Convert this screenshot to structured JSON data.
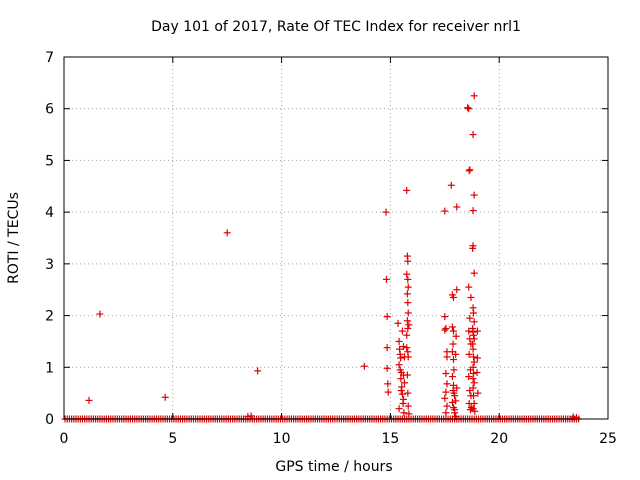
{
  "chart_data": {
    "type": "scatter",
    "title": "Day 101 of 2017, Rate Of TEC Index for receiver nrl1",
    "xlabel": "GPS time / hours",
    "ylabel": "ROTI / TECUs",
    "xlim": [
      0,
      25
    ],
    "ylim": [
      0,
      7
    ],
    "xticks": [
      "0",
      "5",
      "10",
      "15",
      "20",
      "25"
    ],
    "yticks": [
      "0",
      "1",
      "2",
      "3",
      "4",
      "5",
      "6",
      "7"
    ],
    "grid": true,
    "legend": "none",
    "marker": "plus",
    "color": "#e00000",
    "series": [
      {
        "name": "nrl1",
        "baseline": {
          "x_start": 0.05,
          "x_end": 23.7,
          "step": 0.1,
          "y": 0.0
        },
        "points": [
          [
            1.15,
            0.36
          ],
          [
            1.65,
            2.03
          ],
          [
            4.65,
            0.42
          ],
          [
            7.5,
            3.6
          ],
          [
            8.9,
            0.93
          ],
          [
            8.45,
            0.05
          ],
          [
            8.6,
            0.06
          ],
          [
            13.8,
            1.02
          ],
          [
            14.8,
            4.0
          ],
          [
            14.82,
            2.7
          ],
          [
            14.85,
            1.98
          ],
          [
            14.85,
            1.38
          ],
          [
            14.85,
            0.98
          ],
          [
            14.88,
            0.68
          ],
          [
            14.9,
            0.52
          ],
          [
            15.35,
            1.85
          ],
          [
            15.4,
            1.5
          ],
          [
            15.42,
            1.35
          ],
          [
            15.45,
            1.25
          ],
          [
            15.47,
            1.18
          ],
          [
            15.4,
            1.05
          ],
          [
            15.45,
            0.95
          ],
          [
            15.5,
            0.9
          ],
          [
            15.48,
            0.78
          ],
          [
            15.52,
            0.62
          ],
          [
            15.5,
            0.55
          ],
          [
            15.55,
            0.48
          ],
          [
            15.58,
            0.3
          ],
          [
            15.62,
            0.12
          ],
          [
            15.55,
            1.7
          ],
          [
            15.6,
            1.4
          ],
          [
            15.65,
            1.2
          ],
          [
            15.6,
            0.85
          ],
          [
            15.65,
            0.7
          ],
          [
            15.6,
            0.38
          ],
          [
            15.4,
            0.2
          ],
          [
            15.75,
            4.42
          ],
          [
            15.78,
            3.15
          ],
          [
            15.8,
            3.05
          ],
          [
            15.75,
            2.8
          ],
          [
            15.8,
            2.7
          ],
          [
            15.82,
            2.55
          ],
          [
            15.78,
            2.42
          ],
          [
            15.8,
            2.25
          ],
          [
            15.82,
            2.05
          ],
          [
            15.78,
            1.9
          ],
          [
            15.8,
            1.75
          ],
          [
            15.75,
            1.38
          ],
          [
            15.8,
            1.3
          ],
          [
            15.82,
            1.2
          ],
          [
            15.78,
            0.85
          ],
          [
            15.8,
            0.5
          ],
          [
            15.82,
            0.25
          ],
          [
            15.85,
            0.1
          ],
          [
            15.75,
            1.62
          ],
          [
            15.85,
            1.82
          ],
          [
            17.5,
            4.02
          ],
          [
            17.5,
            1.98
          ],
          [
            17.55,
            1.75
          ],
          [
            17.5,
            1.72
          ],
          [
            17.6,
            1.2
          ],
          [
            17.55,
            0.88
          ],
          [
            17.6,
            0.68
          ],
          [
            17.55,
            0.52
          ],
          [
            17.5,
            0.4
          ],
          [
            17.6,
            0.25
          ],
          [
            17.55,
            0.12
          ],
          [
            17.6,
            1.3
          ],
          [
            17.8,
            4.52
          ],
          [
            17.85,
            2.4
          ],
          [
            17.9,
            2.35
          ],
          [
            17.85,
            1.78
          ],
          [
            17.9,
            1.7
          ],
          [
            17.88,
            1.45
          ],
          [
            17.85,
            1.3
          ],
          [
            17.9,
            1.15
          ],
          [
            17.92,
            0.95
          ],
          [
            17.85,
            0.82
          ],
          [
            17.9,
            0.65
          ],
          [
            17.88,
            0.55
          ],
          [
            17.92,
            0.5
          ],
          [
            17.95,
            0.45
          ],
          [
            17.85,
            0.32
          ],
          [
            17.9,
            0.22
          ],
          [
            17.95,
            0.12
          ],
          [
            18.0,
            0.05
          ],
          [
            18.05,
            4.1
          ],
          [
            18.05,
            2.5
          ],
          [
            18.02,
            1.6
          ],
          [
            18.0,
            1.25
          ],
          [
            18.05,
            0.6
          ],
          [
            18.0,
            0.35
          ],
          [
            17.95,
            0.18
          ],
          [
            18.55,
            6.02
          ],
          [
            18.6,
            6.0
          ],
          [
            18.62,
            4.8
          ],
          [
            18.65,
            4.82
          ],
          [
            18.6,
            2.55
          ],
          [
            18.7,
            2.35
          ],
          [
            18.65,
            1.95
          ],
          [
            18.6,
            1.7
          ],
          [
            18.65,
            1.55
          ],
          [
            18.7,
            1.45
          ],
          [
            18.62,
            1.25
          ],
          [
            18.68,
            0.95
          ],
          [
            18.6,
            0.82
          ],
          [
            18.65,
            0.55
          ],
          [
            18.7,
            0.45
          ],
          [
            18.62,
            0.3
          ],
          [
            18.68,
            0.18
          ],
          [
            18.72,
            0.22
          ],
          [
            18.85,
            6.25
          ],
          [
            18.8,
            5.5
          ],
          [
            18.85,
            4.33
          ],
          [
            18.8,
            4.03
          ],
          [
            18.78,
            3.3
          ],
          [
            18.8,
            3.35
          ],
          [
            18.85,
            2.82
          ],
          [
            18.8,
            2.15
          ],
          [
            18.82,
            2.05
          ],
          [
            18.85,
            1.88
          ],
          [
            18.78,
            1.75
          ],
          [
            18.8,
            1.68
          ],
          [
            18.82,
            1.62
          ],
          [
            18.85,
            1.55
          ],
          [
            18.78,
            1.45
          ],
          [
            18.8,
            1.35
          ],
          [
            18.82,
            1.2
          ],
          [
            18.85,
            1.1
          ],
          [
            18.8,
            1.0
          ],
          [
            18.82,
            0.88
          ],
          [
            18.8,
            0.78
          ],
          [
            18.85,
            0.7
          ],
          [
            18.8,
            0.6
          ],
          [
            18.82,
            0.45
          ],
          [
            18.85,
            0.3
          ],
          [
            18.8,
            0.2
          ],
          [
            18.88,
            0.15
          ],
          [
            19.0,
            1.7
          ],
          [
            19.0,
            1.18
          ],
          [
            18.98,
            0.9
          ],
          [
            19.02,
            0.5
          ],
          [
            23.4,
            0.04
          ],
          [
            23.55,
            0.03
          ]
        ]
      }
    ]
  }
}
